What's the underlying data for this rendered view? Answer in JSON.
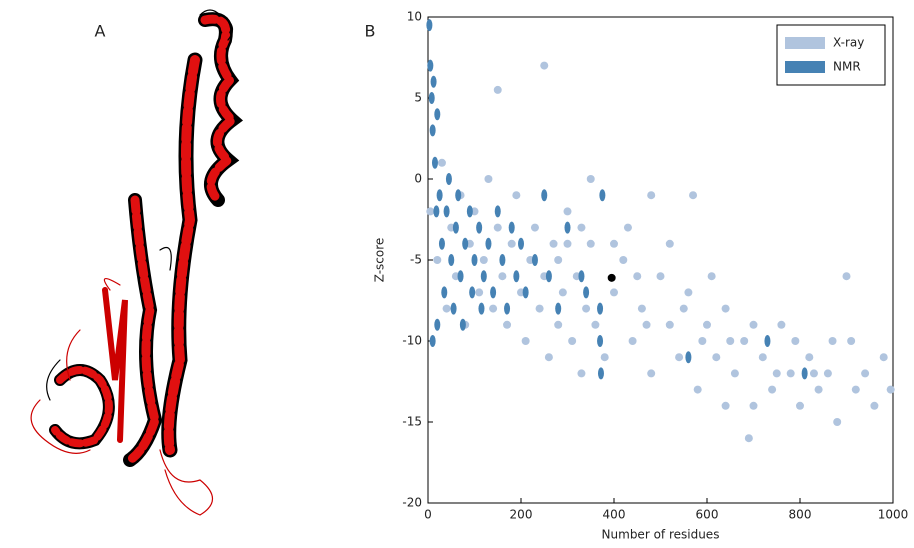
{
  "panels": [
    "A",
    "B"
  ],
  "chart_data": {
    "type": "scatter",
    "x_label": "Number of residues",
    "y_label": "Z-score",
    "xlim": [
      0,
      1000
    ],
    "xticks": [
      0,
      200,
      400,
      600,
      800,
      1000
    ],
    "ylim": [
      -20,
      10
    ],
    "yticks": [
      -20,
      -15,
      -10,
      -5,
      0,
      5,
      10
    ],
    "legend": "upper right",
    "series": [
      {
        "name": "X-ray",
        "color": "#b0c4de",
        "x": [
          5,
          20,
          30,
          40,
          50,
          60,
          70,
          80,
          90,
          100,
          110,
          120,
          130,
          140,
          150,
          160,
          170,
          180,
          190,
          200,
          210,
          220,
          230,
          240,
          250,
          260,
          270,
          280,
          290,
          300,
          310,
          320,
          330,
          340,
          350,
          360,
          380,
          400,
          420,
          440,
          460,
          480,
          500,
          520,
          540,
          560,
          580,
          600,
          620,
          640,
          660,
          680,
          690,
          700,
          720,
          740,
          760,
          780,
          800,
          820,
          840,
          860,
          880,
          900,
          910,
          920,
          940,
          960,
          980,
          995,
          480,
          150,
          250,
          570,
          350,
          430,
          450,
          520,
          610,
          650,
          700,
          750,
          790,
          830,
          870,
          300,
          280,
          330,
          400,
          470,
          550,
          590,
          640
        ],
        "values": [
          -2,
          -5,
          1,
          -8,
          -3,
          -6,
          -1,
          -9,
          -4,
          -2,
          -7,
          -5,
          0,
          -8,
          -3,
          -6,
          -9,
          -4,
          -1,
          -7,
          -10,
          -5,
          -3,
          -8,
          -6,
          -11,
          -4,
          -9,
          -7,
          -2,
          -10,
          -6,
          -12,
          -8,
          -4,
          -9,
          -11,
          -7,
          -5,
          -10,
          -8,
          -12,
          -6,
          -9,
          -11,
          -7,
          -13,
          -9,
          -11,
          -8,
          -12,
          -10,
          -16,
          -14,
          -11,
          -13,
          -9,
          -12,
          -14,
          -11,
          -13,
          -12,
          -15,
          -6,
          -10,
          -13,
          -12,
          -14,
          -11,
          -13,
          -1,
          5.5,
          7,
          -1,
          0,
          -3,
          -6,
          -4,
          -6,
          -10,
          -9,
          -12,
          -10,
          -12,
          -10,
          -4,
          -5,
          -3,
          -4,
          -9,
          -8,
          -10,
          -14
        ]
      },
      {
        "name": "NMR",
        "color": "#4682b4",
        "x": [
          3,
          5,
          8,
          10,
          12,
          15,
          18,
          20,
          25,
          30,
          35,
          40,
          45,
          50,
          55,
          60,
          65,
          70,
          75,
          80,
          90,
          95,
          100,
          110,
          115,
          120,
          130,
          140,
          150,
          160,
          170,
          180,
          190,
          200,
          210,
          230,
          250,
          260,
          280,
          300,
          330,
          370,
          370,
          372,
          375,
          560,
          730,
          810,
          340,
          20,
          10
        ],
        "values": [
          9.5,
          7,
          5,
          3,
          6,
          1,
          -2,
          4,
          -1,
          -4,
          -7,
          -2,
          0,
          -5,
          -8,
          -3,
          -1,
          -6,
          -9,
          -4,
          -2,
          -7,
          -5,
          -3,
          -8,
          -6,
          -4,
          -7,
          -2,
          -5,
          -8,
          -3,
          -6,
          -4,
          -7,
          -5,
          -1,
          -6,
          -8,
          -3,
          -6,
          -8,
          -10,
          -12,
          -1,
          -11,
          -10,
          -12,
          -7,
          -9,
          -10
        ]
      }
    ],
    "highlight": {
      "x": 395,
      "y": -6.1,
      "color": "#000000"
    }
  }
}
